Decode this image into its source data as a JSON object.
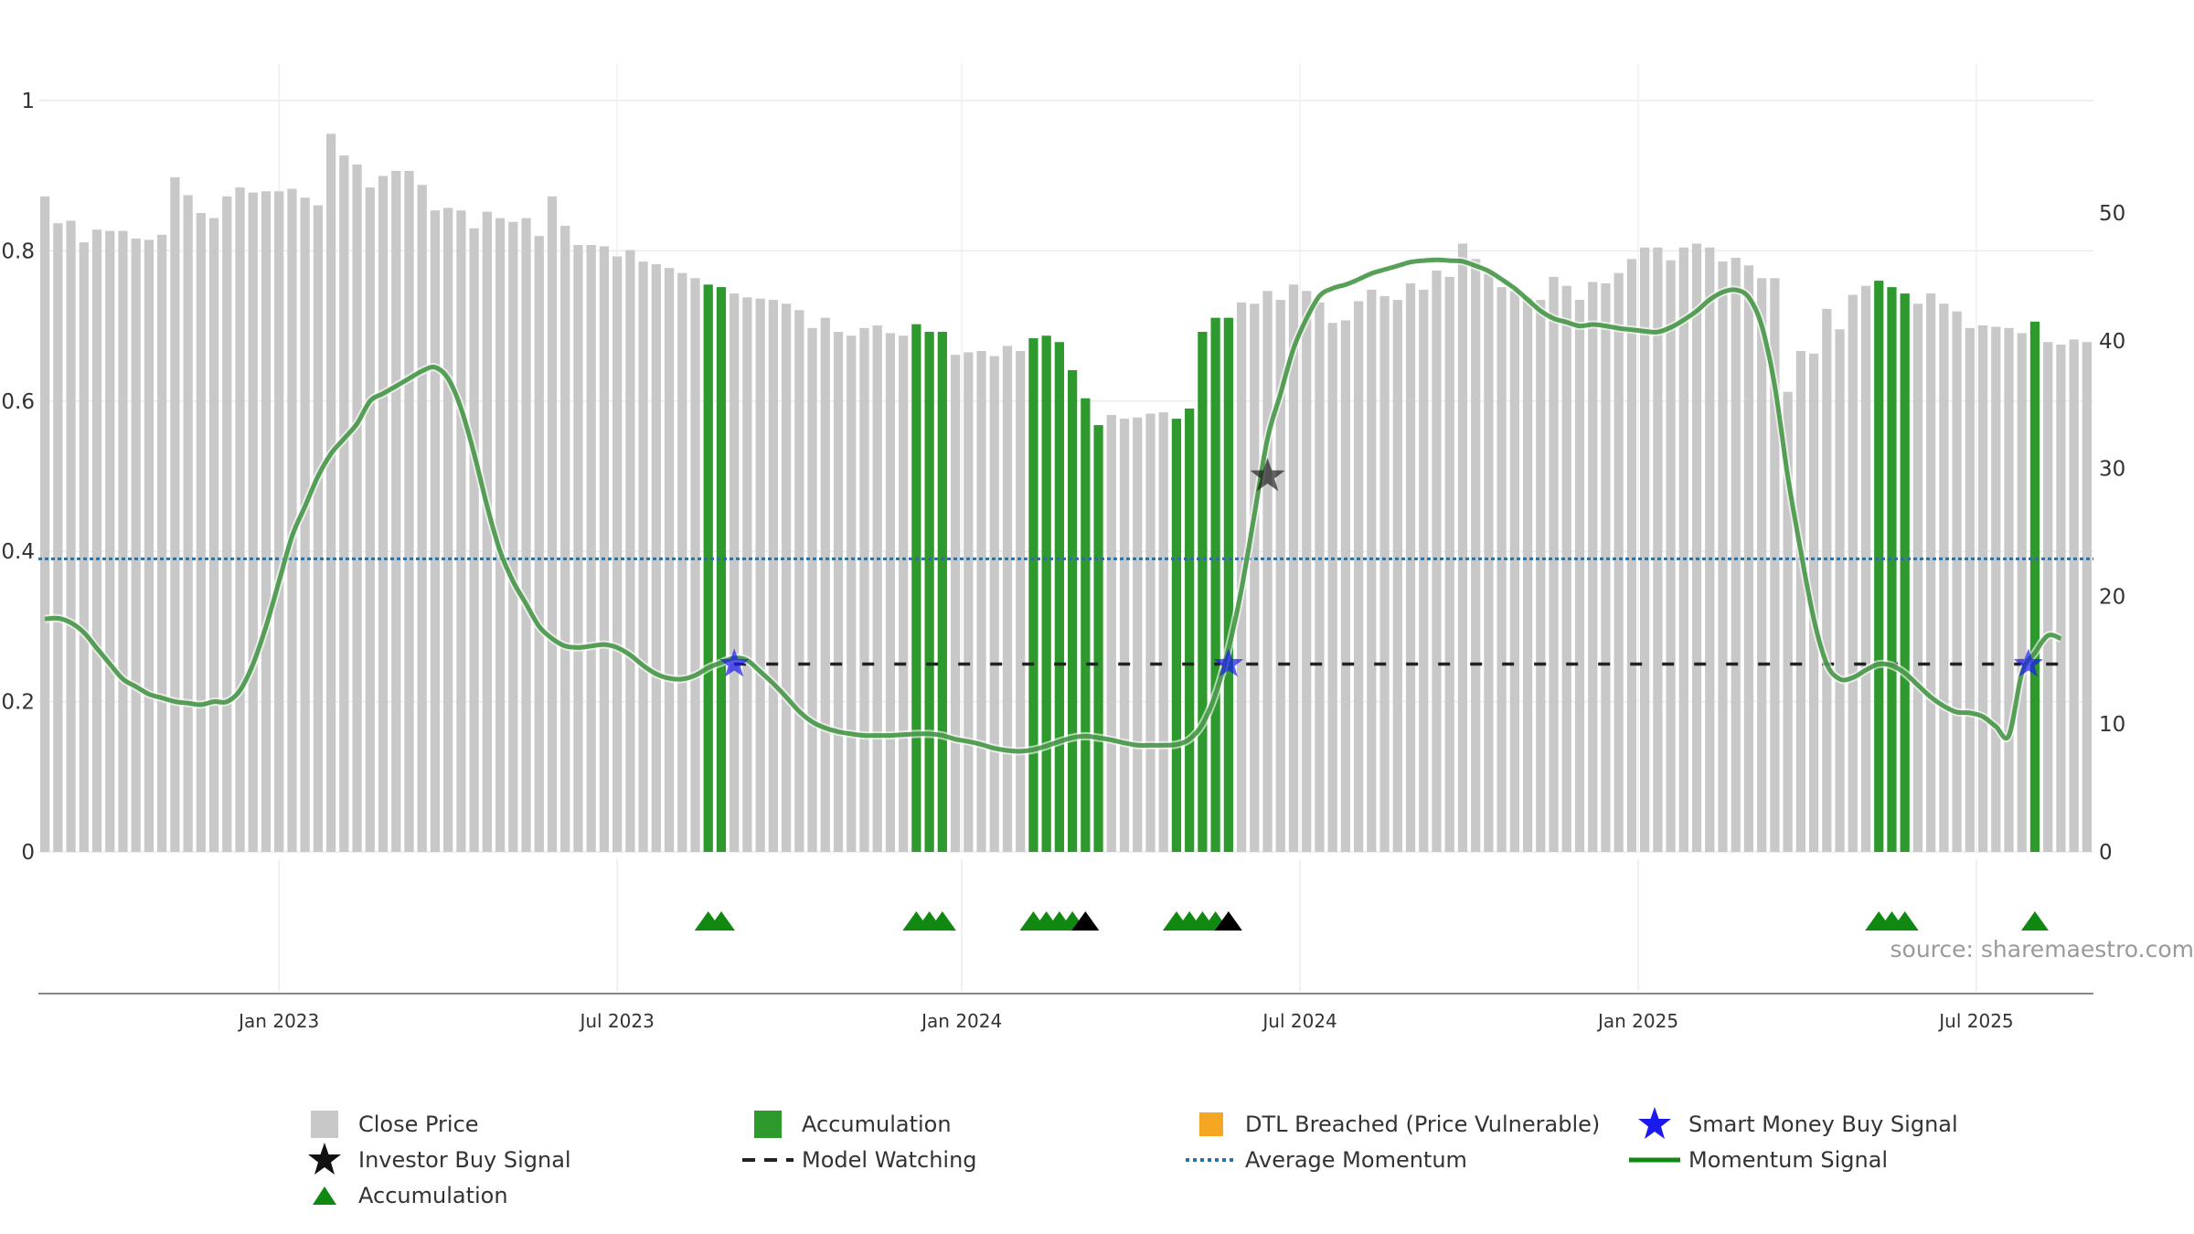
{
  "chart_data": {
    "type": "bar",
    "watermark": "source: sharemaestro.com",
    "y_left": {
      "range": [
        0,
        1
      ],
      "ticks": [
        "0",
        "0.2",
        "0.4",
        "0.6",
        "0.8",
        "1"
      ],
      "tick_values": [
        0,
        0.2,
        0.4,
        0.6,
        0.8,
        1
      ]
    },
    "y_right": {
      "range": [
        0,
        58.8
      ],
      "ticks": [
        "0",
        "10",
        "20",
        "30",
        "40",
        "50"
      ],
      "tick_values": [
        0,
        10,
        20,
        30,
        40,
        50
      ]
    },
    "x_ticks": [
      {
        "label": "Jan 2023",
        "week": 18
      },
      {
        "label": "Jul 2023",
        "week": 44
      },
      {
        "label": "Jan 2024",
        "week": 70.5
      },
      {
        "label": "Jul 2024",
        "week": 96.5
      },
      {
        "label": "Jan 2025",
        "week": 122.5
      },
      {
        "label": "Jul 2025",
        "week": 148.5
      }
    ],
    "close_price": [
      51.3,
      49.2,
      49.4,
      47.7,
      48.7,
      48.6,
      48.6,
      48.0,
      47.9,
      48.3,
      52.8,
      51.4,
      50.0,
      49.6,
      51.3,
      52.0,
      51.6,
      51.7,
      51.7,
      51.9,
      51.2,
      50.6,
      56.2,
      54.5,
      53.8,
      52.0,
      52.9,
      53.3,
      53.3,
      52.2,
      50.2,
      50.4,
      50.2,
      48.8,
      50.1,
      49.6,
      49.3,
      49.6,
      48.2,
      51.3,
      49.0,
      47.5,
      47.5,
      47.4,
      46.6,
      47.1,
      46.2,
      46.0,
      45.7,
      45.3,
      44.9,
      44.4,
      44.2,
      43.7,
      43.4,
      43.3,
      43.2,
      42.9,
      42.4,
      41.0,
      41.8,
      40.7,
      40.4,
      41.0,
      41.2,
      40.6,
      40.4,
      41.3,
      40.7,
      40.7,
      38.9,
      39.1,
      39.2,
      38.8,
      39.6,
      39.2,
      40.2,
      40.4,
      39.9,
      37.7,
      35.5,
      33.4,
      34.2,
      33.9,
      34.0,
      34.3,
      34.4,
      33.9,
      34.7,
      40.7,
      41.8,
      41.8,
      43.0,
      42.9,
      43.9,
      43.2,
      44.4,
      43.9,
      43.0,
      41.4,
      41.6,
      43.1,
      44.0,
      43.5,
      43.2,
      44.5,
      44.0,
      45.5,
      45.0,
      47.6,
      46.4,
      45.3,
      44.2,
      43.9,
      43.4,
      43.2,
      45.0,
      44.3,
      43.2,
      44.6,
      44.5,
      45.3,
      46.4,
      47.3,
      47.3,
      46.3,
      47.3,
      47.6,
      47.3,
      46.2,
      46.5,
      45.9,
      44.9,
      44.9,
      36.0,
      39.2,
      39.0,
      42.5,
      40.9,
      43.6,
      44.3,
      44.7,
      44.2,
      43.7,
      42.9,
      43.7,
      42.9,
      42.3,
      41.0,
      41.2,
      41.1,
      41.0,
      40.6,
      41.5,
      39.9,
      39.7,
      40.1,
      39.9
    ],
    "accumulation_bars": [
      51,
      52,
      67,
      68,
      69,
      76,
      77,
      78,
      79,
      80,
      81,
      87,
      88,
      89,
      90,
      91,
      141,
      142,
      143,
      153
    ],
    "momentum_signal": [
      0.31,
      0.311,
      0.305,
      0.292,
      0.271,
      0.25,
      0.23,
      0.22,
      0.21,
      0.205,
      0.2,
      0.198,
      0.196,
      0.2,
      0.2,
      0.215,
      0.25,
      0.3,
      0.36,
      0.42,
      0.46,
      0.5,
      0.53,
      0.55,
      0.57,
      0.6,
      0.61,
      0.62,
      0.63,
      0.64,
      0.645,
      0.63,
      0.59,
      0.53,
      0.46,
      0.4,
      0.36,
      0.33,
      0.3,
      0.284,
      0.274,
      0.272,
      0.274,
      0.276,
      0.272,
      0.262,
      0.248,
      0.237,
      0.231,
      0.23,
      0.235,
      0.245,
      0.252,
      0.258,
      0.255,
      0.24,
      0.224,
      0.206,
      0.187,
      0.173,
      0.165,
      0.16,
      0.157,
      0.155,
      0.155,
      0.155,
      0.156,
      0.157,
      0.157,
      0.155,
      0.15,
      0.147,
      0.143,
      0.138,
      0.135,
      0.134,
      0.136,
      0.141,
      0.147,
      0.152,
      0.154,
      0.152,
      0.149,
      0.145,
      0.142,
      0.142,
      0.142,
      0.143,
      0.15,
      0.17,
      0.21,
      0.27,
      0.35,
      0.45,
      0.55,
      0.61,
      0.67,
      0.71,
      0.74,
      0.75,
      0.755,
      0.762,
      0.77,
      0.775,
      0.78,
      0.785,
      0.787,
      0.788,
      0.787,
      0.786,
      0.78,
      0.773,
      0.762,
      0.75,
      0.735,
      0.72,
      0.71,
      0.705,
      0.7,
      0.702,
      0.7,
      0.697,
      0.695,
      0.693,
      0.692,
      0.698,
      0.708,
      0.72,
      0.735,
      0.745,
      0.748,
      0.738,
      0.7,
      0.62,
      0.5,
      0.4,
      0.31,
      0.25,
      0.23,
      0.232,
      0.242,
      0.25,
      0.248,
      0.238,
      0.222,
      0.206,
      0.194,
      0.186,
      0.185,
      0.18,
      0.167,
      0.155,
      0.238,
      0.265,
      0.288,
      0.284
    ],
    "model_watching": {
      "value": 0.25,
      "from_week": 53,
      "to_week": 156
    },
    "average_momentum": 0.39,
    "smart_money_signals": [
      {
        "week": 53,
        "value": 0.25
      },
      {
        "week": 91,
        "value": 0.25
      },
      {
        "week": 152.5,
        "value": 0.25
      }
    ],
    "investor_buy_signals": [
      {
        "week": 94,
        "value": 0.5
      }
    ],
    "accumulation_triangles": [
      {
        "week": 51,
        "color": "green"
      },
      {
        "week": 52,
        "color": "green"
      },
      {
        "week": 67,
        "color": "green"
      },
      {
        "week": 68,
        "color": "green"
      },
      {
        "week": 69,
        "color": "green"
      },
      {
        "week": 76,
        "color": "green"
      },
      {
        "week": 77,
        "color": "green"
      },
      {
        "week": 78,
        "color": "green"
      },
      {
        "week": 79,
        "color": "green"
      },
      {
        "week": 80,
        "color": "black"
      },
      {
        "week": 87,
        "color": "green"
      },
      {
        "week": 88,
        "color": "green"
      },
      {
        "week": 89,
        "color": "green"
      },
      {
        "week": 90,
        "color": "green"
      },
      {
        "week": 91,
        "color": "black"
      },
      {
        "week": 141,
        "color": "green"
      },
      {
        "week": 142,
        "color": "green"
      },
      {
        "week": 143,
        "color": "green"
      },
      {
        "week": 153,
        "color": "green"
      }
    ],
    "legend": [
      {
        "key": "close_price",
        "label": "Close Price"
      },
      {
        "key": "accumulation_bar",
        "label": "Accumulation"
      },
      {
        "key": "dtl_breached",
        "label": "DTL Breached (Price Vulnerable)"
      },
      {
        "key": "smart_money",
        "label": "Smart Money Buy Signal"
      },
      {
        "key": "investor_buy",
        "label": "Investor Buy Signal"
      },
      {
        "key": "model_watching",
        "label": "Model Watching"
      },
      {
        "key": "average_momentum",
        "label": "Average Momentum"
      },
      {
        "key": "momentum_signal",
        "label": "Momentum Signal"
      },
      {
        "key": "accumulation_triangle",
        "label": "Accumulation"
      }
    ],
    "colors": {
      "close_price": "#c8c8c8",
      "accumulation": "#2e9a2e",
      "momentum": "#3a8f3a",
      "momentum_strong": "#0a800a",
      "average": "#2e6f9e",
      "watching": "#222222",
      "smart_money": "#1a1aee",
      "investor": "#111111",
      "dtl": "#f5a623",
      "triangle_green": "#118811",
      "triangle_black": "#000000"
    }
  }
}
